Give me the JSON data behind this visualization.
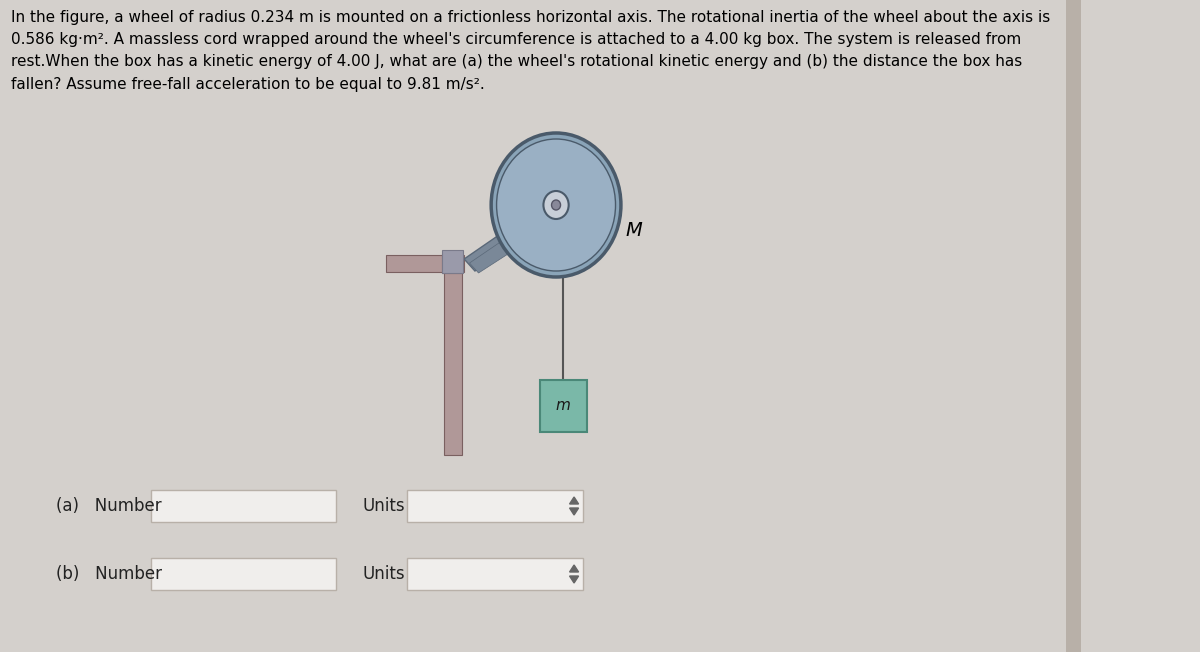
{
  "bg_color": "#d4d0cc",
  "title_text": "In the figure, a wheel of radius 0.234 m is mounted on a frictionless horizontal axis. The rotational inertia of the wheel about the axis is\n0.586 kg·m². A massless cord wrapped around the wheel's circumference is attached to a 4.00 kg box. The system is released from\nrest.When the box has a kinetic energy of 4.00 J, what are (a) the wheel's rotational kinetic energy and (b) the distance the box has\nfallen? Assume free-fall acceleration to be equal to 9.81 m/s².",
  "title_fontsize": 11.0,
  "label_a": "(a)   Number",
  "label_b": "(b)   Number",
  "units_label": "Units",
  "wheel_color": "#8aa4b8",
  "wheel_edge_color": "#4a5a6a",
  "wheel_inner_color": "#9ab0c4",
  "hub_color": "#c8cfd8",
  "axle_color": "#888888",
  "support_color": "#b09898",
  "bracket_color": "#7a8898",
  "box_color": "#7ab8a8",
  "box_edge_color": "#4a8878",
  "box_label": "m",
  "M_label": "M",
  "cord_color": "#555555",
  "input_box_color": "#f0eeec",
  "input_box_edge": "#aaaaaa",
  "dropdown_color": "#e8e6e4"
}
